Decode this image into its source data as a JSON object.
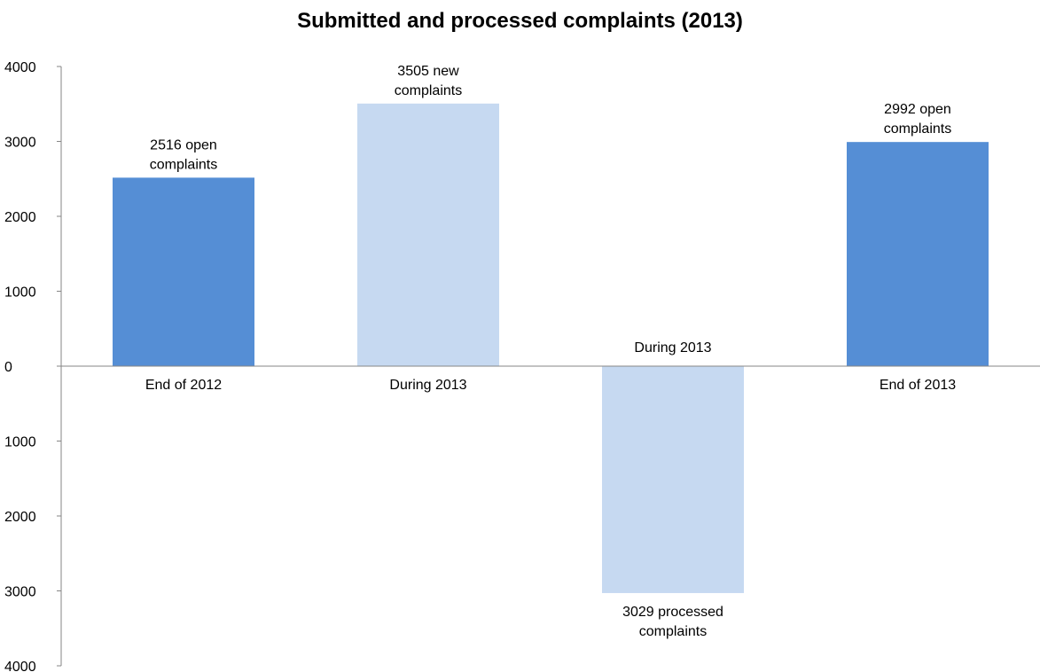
{
  "chart_data": {
    "type": "bar",
    "title": "Submitted and processed complaints (2013)",
    "xlabel": "",
    "ylabel": "",
    "ylim": [
      -4000,
      4000
    ],
    "yticks": [
      4000,
      3000,
      2000,
      1000,
      0,
      -1000,
      -2000,
      -3000,
      -4000
    ],
    "ytick_labels": [
      "4000",
      "3000",
      "2000",
      "1000",
      "0",
      "1000",
      "2000",
      "3000",
      "4000"
    ],
    "grid": false,
    "legend": "none",
    "categories": [
      "End of 2012",
      "During 2013",
      "During 2013",
      "End of 2013"
    ],
    "values": [
      2516,
      3505,
      -3029,
      2992
    ],
    "data_labels": [
      [
        "2516 open",
        "complaints"
      ],
      [
        "3505 new",
        "complaints"
      ],
      [
        "3029 processed",
        "complaints"
      ],
      [
        "2992 open",
        "complaints"
      ]
    ],
    "colors": [
      "#558ED5",
      "#C6D9F1",
      "#C6D9F1",
      "#558ED5"
    ]
  },
  "colors": {
    "axis": "#868686",
    "text": "#000000"
  }
}
